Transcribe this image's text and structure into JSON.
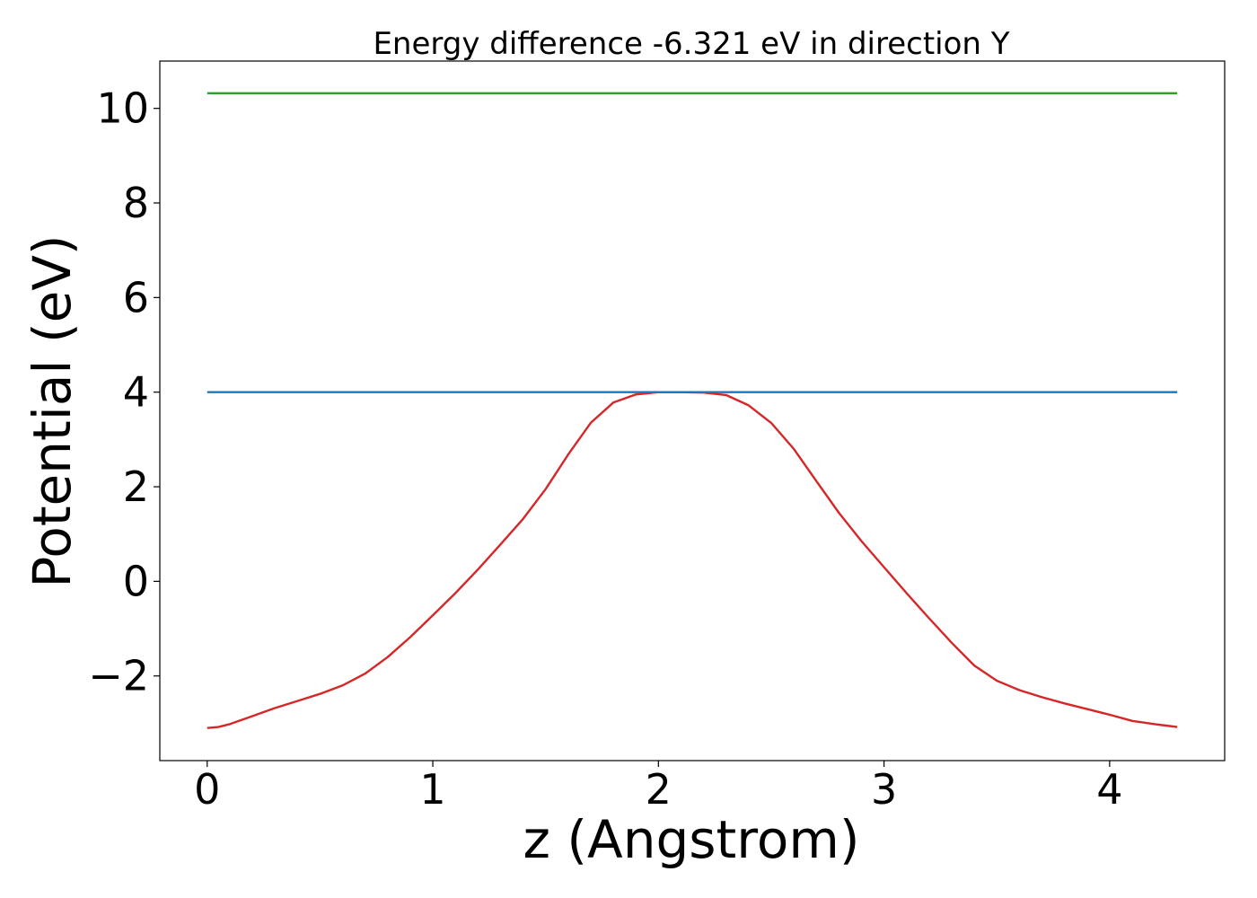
{
  "chart_data": {
    "type": "line",
    "title": "Energy difference -6.321 eV in direction Y",
    "xlabel": "z (Angstrom)",
    "ylabel": "Potential (eV)",
    "xlim": [
      -0.21,
      4.51
    ],
    "ylim": [
      -3.79,
      11.0
    ],
    "xticks": [
      0,
      1,
      2,
      3,
      4
    ],
    "xtick_labels": [
      "0",
      "1",
      "2",
      "3",
      "4"
    ],
    "yticks": [
      -2,
      0,
      2,
      4,
      6,
      8,
      10
    ],
    "ytick_labels": [
      "−2",
      "0",
      "2",
      "4",
      "6",
      "8",
      "10"
    ],
    "grid": false,
    "legend": "none",
    "series": [
      {
        "color": "#d62728",
        "x": [
          0,
          0.05,
          0.1,
          0.2,
          0.3,
          0.4,
          0.5,
          0.6,
          0.7,
          0.8,
          0.9,
          1.0,
          1.1,
          1.2,
          1.3,
          1.4,
          1.5,
          1.6,
          1.7,
          1.8,
          1.9,
          2.0,
          2.1,
          2.2,
          2.3,
          2.4,
          2.5,
          2.6,
          2.7,
          2.8,
          2.9,
          3.0,
          3.1,
          3.2,
          3.3,
          3.4,
          3.5,
          3.6,
          3.7,
          3.8,
          3.9,
          4.0,
          4.1,
          4.2,
          4.25,
          4.3
        ],
        "y": [
          -3.1,
          -3.08,
          -3.02,
          -2.85,
          -2.68,
          -2.53,
          -2.38,
          -2.2,
          -1.95,
          -1.6,
          -1.18,
          -0.72,
          -0.25,
          0.25,
          0.78,
          1.32,
          1.95,
          2.68,
          3.35,
          3.78,
          3.95,
          4.0,
          4.0,
          3.99,
          3.94,
          3.72,
          3.35,
          2.8,
          2.12,
          1.45,
          0.85,
          0.3,
          -0.25,
          -0.78,
          -1.3,
          -1.78,
          -2.1,
          -2.3,
          -2.45,
          -2.58,
          -2.7,
          -2.82,
          -2.95,
          -3.02,
          -3.05,
          -3.08
        ]
      },
      {
        "color": "#1f77b4",
        "x": [
          0,
          4.3
        ],
        "y": [
          4.0,
          4.0
        ]
      },
      {
        "color": "#2ca02c",
        "x": [
          0,
          4.3
        ],
        "y": [
          10.32,
          10.32
        ]
      }
    ]
  }
}
